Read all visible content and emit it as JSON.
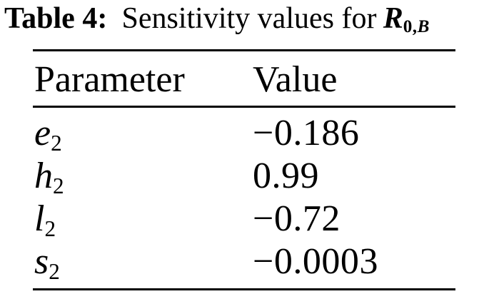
{
  "caption": {
    "label": "Table 4:",
    "text": "Sensitivity values for",
    "symbol_base": "R",
    "symbol_sub_num": "0,",
    "symbol_sub_letter": "B"
  },
  "table": {
    "headers": [
      "Parameter",
      "Value"
    ],
    "rows": [
      {
        "param_base": "e",
        "param_sub": "2",
        "value": "−0.186"
      },
      {
        "param_base": "h",
        "param_sub": "2",
        "value": "0.99"
      },
      {
        "param_base": "l",
        "param_sub": "2",
        "value": "−0.72"
      },
      {
        "param_base": "s",
        "param_sub": "2",
        "value": "−0.0003"
      }
    ]
  },
  "colors": {
    "background": "#ffffff",
    "text": "#000000",
    "rule": "#000000"
  }
}
